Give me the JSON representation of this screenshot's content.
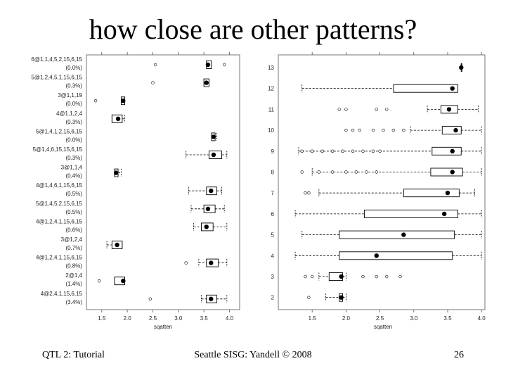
{
  "slide": {
    "title": "how close are other patterns?",
    "footer_left": "QTL 2: Tutorial",
    "footer_center": "Seattle SISG: Yandell © 2008",
    "footer_right": "26"
  },
  "chart_data": [
    {
      "type": "boxplot",
      "orientation": "horizontal",
      "xlabel": "sqatten",
      "xlim": [
        1.2,
        4.2
      ],
      "xticks": [
        1.5,
        2.0,
        2.5,
        3.0,
        3.5,
        4.0
      ],
      "rows": [
        {
          "label": "6@1,1,4,5,2,15,6,15",
          "pct": "(0.0%)",
          "whisker": [
            3.55,
            3.65
          ],
          "box": [
            3.55,
            3.65
          ],
          "median": 3.58,
          "outliers": [
            2.55,
            3.9
          ]
        },
        {
          "label": "5@1,2,4,5,1,15,6,15",
          "pct": "(0.3%)",
          "whisker": [
            3.5,
            3.6
          ],
          "box": [
            3.5,
            3.6
          ],
          "median": 3.55,
          "outliers": [
            2.5
          ]
        },
        {
          "label": "3@1,1,19",
          "pct": "(0.0%)",
          "whisker": [
            1.88,
            1.95
          ],
          "box": [
            1.88,
            1.95
          ],
          "median": 1.92,
          "outliers": [
            1.38
          ]
        },
        {
          "label": "4@1,1,2,4",
          "pct": "(0.3%)",
          "whisker": [
            1.7,
            1.95
          ],
          "box": [
            1.7,
            1.9
          ],
          "median": 1.82,
          "outliers": []
        },
        {
          "label": "5@1,4,1,2,15,6,15",
          "pct": "(0.0%)",
          "whisker": [
            3.65,
            3.75
          ],
          "box": [
            3.65,
            3.72
          ],
          "median": 3.69,
          "outliers": []
        },
        {
          "label": "5@1,4,6,15,15,6,15",
          "pct": "(0.3%)",
          "whisker": [
            3.15,
            3.95
          ],
          "box": [
            3.6,
            3.85
          ],
          "median": 3.69,
          "outliers": []
        },
        {
          "label": "3@1,1,4",
          "pct": "(0.4%)",
          "whisker": [
            1.75,
            1.88
          ],
          "box": [
            1.75,
            1.82
          ],
          "median": 1.78,
          "outliers": []
        },
        {
          "label": "4@1,4,6,1,15,6,15",
          "pct": "(0.5%)",
          "whisker": [
            3.2,
            3.85
          ],
          "box": [
            3.55,
            3.75
          ],
          "median": 3.64,
          "outliers": []
        },
        {
          "label": "5@1,4,5,2,15,6,15",
          "pct": "(0.5%)",
          "whisker": [
            3.25,
            3.9
          ],
          "box": [
            3.5,
            3.72
          ],
          "median": 3.58,
          "outliers": []
        },
        {
          "label": "4@1,2,4,1,15,6,15",
          "pct": "(0.6%)",
          "whisker": [
            3.3,
            3.95
          ],
          "box": [
            3.45,
            3.68
          ],
          "median": 3.55,
          "outliers": []
        },
        {
          "label": "3@1,2,4",
          "pct": "(0.7%)",
          "whisker": [
            1.6,
            1.9
          ],
          "box": [
            1.7,
            1.9
          ],
          "median": 1.8,
          "outliers": []
        },
        {
          "label": "4@1,2,4,1,15,6,15",
          "pct": "(0.8%)",
          "whisker": [
            3.4,
            3.95
          ],
          "box": [
            3.55,
            3.78
          ],
          "median": 3.64,
          "outliers": [
            3.15
          ]
        },
        {
          "label": "2@1,4",
          "pct": "(1.4%)",
          "whisker": [
            1.75,
            1.95
          ],
          "box": [
            1.75,
            1.95
          ],
          "median": 1.92,
          "outliers": [
            1.45
          ]
        },
        {
          "label": "4@2,4,1,15,6,15",
          "pct": "(3.4%)",
          "whisker": [
            3.45,
            3.95
          ],
          "box": [
            3.55,
            3.75
          ],
          "median": 3.64,
          "outliers": [
            2.45
          ]
        }
      ]
    },
    {
      "type": "boxplot",
      "orientation": "horizontal",
      "xlabel": "sqatten",
      "xlim": [
        1.0,
        4.05
      ],
      "xticks": [
        1.5,
        2.0,
        2.5,
        3.0,
        3.5,
        4.0
      ],
      "rows": [
        {
          "label": "13",
          "whisker": [
            3.7,
            3.7
          ],
          "box": [
            3.7,
            3.7
          ],
          "median": 3.7,
          "outliers": []
        },
        {
          "label": "12",
          "whisker": [
            1.35,
            3.65
          ],
          "box": [
            2.7,
            3.65
          ],
          "median": 3.57,
          "outliers": []
        },
        {
          "label": "11",
          "whisker": [
            3.2,
            3.95
          ],
          "box": [
            3.4,
            3.65
          ],
          "median": 3.52,
          "outliers": [
            1.9,
            2.0,
            2.45,
            2.6
          ]
        },
        {
          "label": "10",
          "whisker": [
            2.95,
            4.0
          ],
          "box": [
            3.42,
            3.7
          ],
          "median": 3.62,
          "outliers": [
            2.0,
            2.1,
            2.2,
            2.4,
            2.55,
            2.7,
            2.85
          ]
        },
        {
          "label": "9",
          "whisker": [
            1.3,
            4.0
          ],
          "box": [
            3.27,
            3.7
          ],
          "median": 3.57,
          "outliers": [
            1.35,
            1.5,
            1.65,
            1.8,
            1.95,
            2.1,
            2.25,
            2.4,
            2.5
          ]
        },
        {
          "label": "8",
          "whisker": [
            1.5,
            4.0
          ],
          "box": [
            3.25,
            3.72
          ],
          "median": 3.57,
          "outliers": [
            1.35,
            1.6,
            1.8,
            2.0,
            2.15,
            2.3,
            2.45
          ]
        },
        {
          "label": "7",
          "whisker": [
            1.6,
            3.9
          ],
          "box": [
            2.85,
            3.67
          ],
          "median": 3.5,
          "outliers": [
            1.4,
            1.45
          ]
        },
        {
          "label": "6",
          "whisker": [
            1.25,
            4.0
          ],
          "box": [
            2.27,
            3.65
          ],
          "median": 3.45,
          "outliers": []
        },
        {
          "label": "5",
          "whisker": [
            1.35,
            4.0
          ],
          "box": [
            1.9,
            3.6
          ],
          "median": 2.85,
          "outliers": []
        },
        {
          "label": "4",
          "whisker": [
            1.25,
            4.0
          ],
          "box": [
            1.9,
            3.57
          ],
          "median": 2.45,
          "outliers": []
        },
        {
          "label": "3",
          "whisker": [
            1.6,
            2.0
          ],
          "box": [
            1.75,
            1.95
          ],
          "median": 1.93,
          "outliers": [
            1.4,
            1.5,
            2.25,
            2.45,
            2.6,
            2.8
          ]
        },
        {
          "label": "2",
          "whisker": [
            1.7,
            2.0
          ],
          "box": [
            1.9,
            1.95
          ],
          "median": 1.93,
          "outliers": [
            1.45
          ]
        }
      ]
    }
  ]
}
